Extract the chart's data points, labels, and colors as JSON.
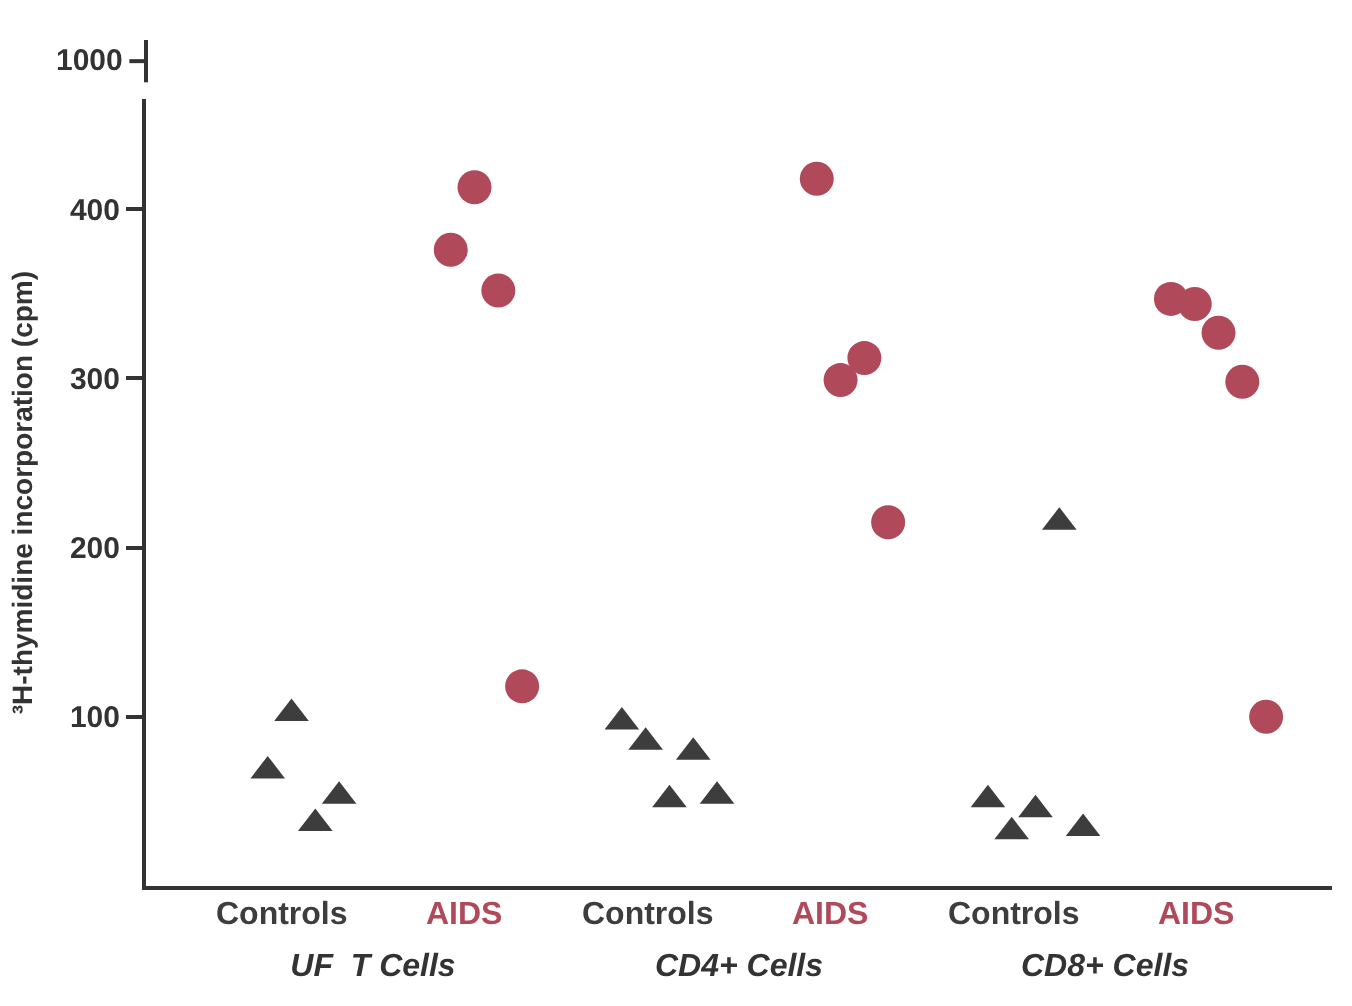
{
  "chart_data": {
    "type": "scatter",
    "ylabel": "³H-thymidine incorporation (cpm)",
    "categories": [
      "UF  T Cells",
      "CD4+ Cells",
      "CD8+ Cells"
    ],
    "ylim": [
      0,
      465
    ],
    "yticks": [
      100,
      200,
      300,
      400
    ],
    "annotations": [
      "1000"
    ],
    "series": [
      {
        "name": "Controls",
        "color": "#3d3d3d",
        "marker": "triangle",
        "x": [
          "UF  T Cells",
          "UF  T Cells",
          "UF  T Cells",
          "UF  T Cells",
          "CD4+ Cells",
          "CD4+ Cells",
          "CD4+ Cells",
          "CD4+ Cells",
          "CD4+ Cells",
          "CD8+ Cells",
          "CD8+ Cells",
          "CD8+ Cells",
          "CD8+ Cells",
          "CD8+ Cells"
        ],
        "values": [
          68,
          102,
          37,
          53,
          97,
          85,
          51,
          79,
          53,
          51,
          32,
          45,
          215,
          34
        ]
      },
      {
        "name": "AIDS",
        "color": "#b04a5a",
        "marker": "circle",
        "x": [
          "UF  T Cells",
          "UF  T Cells",
          "UF  T Cells",
          "UF  T Cells",
          "CD4+ Cells",
          "CD4+ Cells",
          "CD4+ Cells",
          "CD4+ Cells",
          "CD8+ Cells",
          "CD8+ Cells",
          "CD8+ Cells",
          "CD8+ Cells",
          "CD8+ Cells"
        ],
        "values": [
          376,
          413,
          352,
          118,
          418,
          299,
          312,
          215,
          347,
          344,
          327,
          298,
          100
        ]
      }
    ]
  }
}
